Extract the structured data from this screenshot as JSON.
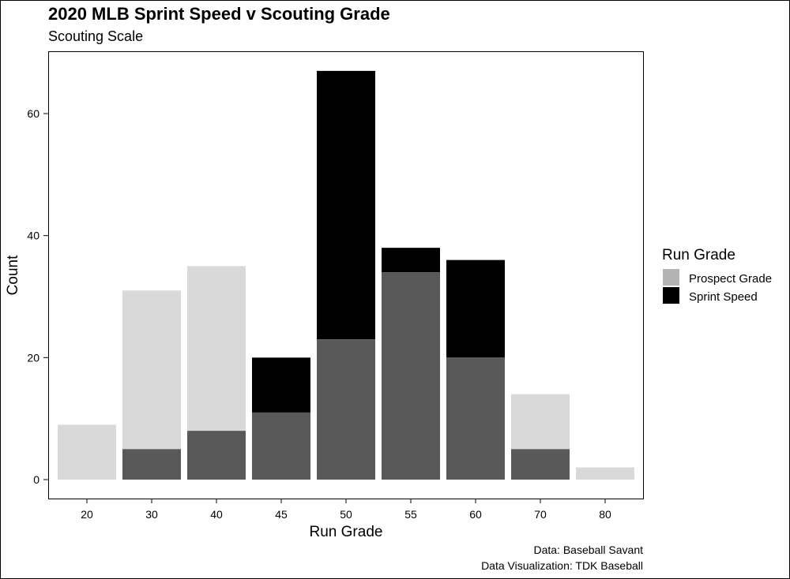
{
  "chart_data": {
    "type": "bar",
    "title": "2020 MLB Sprint Speed v Scouting Grade",
    "subtitle": "Scouting Scale",
    "xlabel": "Run Grade",
    "ylabel": "Count",
    "categories": [
      "20",
      "30",
      "40",
      "45",
      "50",
      "55",
      "60",
      "70",
      "80"
    ],
    "ylim": [
      0,
      70
    ],
    "yticks": [
      0,
      20,
      40,
      60
    ],
    "series": [
      {
        "name": "Prospect Grade",
        "values": [
          9,
          31,
          35,
          11,
          23,
          34,
          20,
          14,
          2
        ]
      },
      {
        "name": "Sprint Speed",
        "values": [
          0,
          5,
          8,
          20,
          67,
          38,
          36,
          5,
          0
        ]
      }
    ],
    "overlap_value_note_color": "#595959",
    "colors": {
      "prospect_grade": "#d9d9d9",
      "sprint_speed": "#000000",
      "overlap": "#595959",
      "legend_prospect": "#b3b3b3",
      "legend_sprint": "#000000"
    },
    "legend": {
      "title": "Run Grade",
      "position": "right"
    },
    "grid": false,
    "captions": [
      "Data: Baseball Savant",
      "Data Visualization: TDK Baseball"
    ]
  }
}
